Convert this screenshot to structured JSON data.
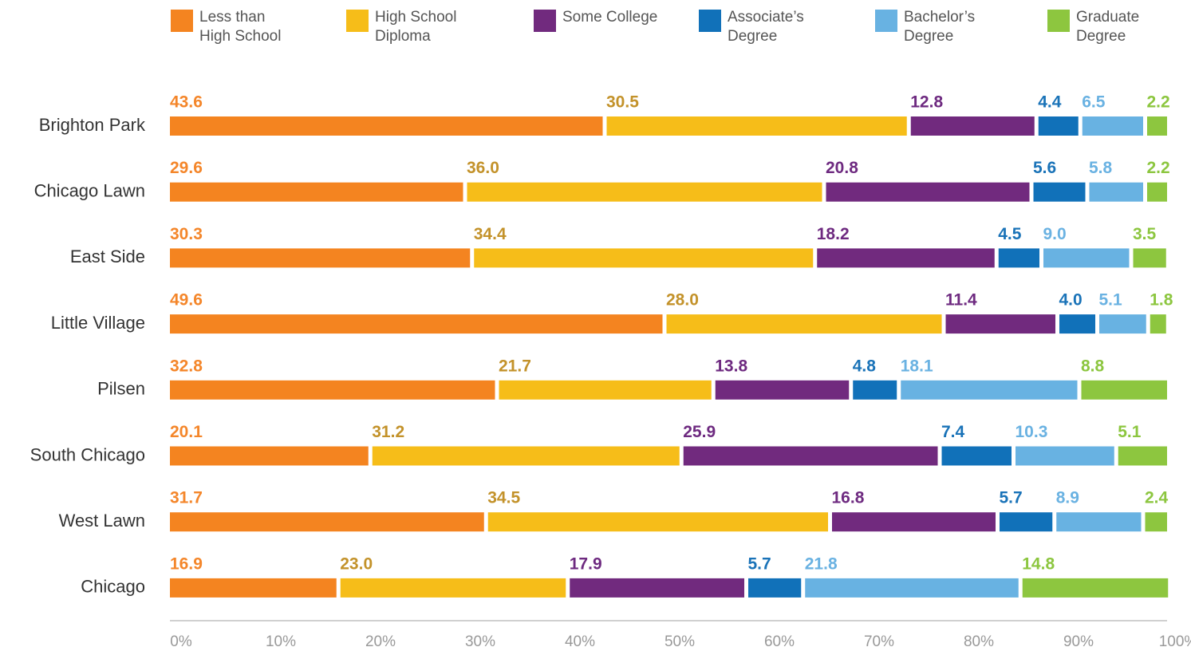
{
  "chart_data": {
    "type": "stacked-bar-horizontal",
    "categories": [
      "Brighton Park",
      "Chicago Lawn",
      "East Side",
      "Little Village",
      "Pilsen",
      "South Chicago",
      "West Lawn",
      "Chicago"
    ],
    "series": [
      {
        "name": "Less than High School",
        "color": "#f48420",
        "label_color": "#f4862a",
        "values": [
          43.6,
          29.6,
          30.3,
          49.6,
          32.8,
          20.1,
          31.7,
          16.9
        ],
        "value_labels": [
          "43.6",
          "29.6",
          "30.3",
          "49.6",
          "32.8",
          "20.1",
          "31.7",
          "16.9"
        ]
      },
      {
        "name": "High School Diploma",
        "color": "#f6bd19",
        "label_color": "#c3922a",
        "values": [
          30.5,
          36,
          34.4,
          28,
          21.7,
          31.2,
          34.5,
          23
        ],
        "value_labels": [
          "30.5",
          "36.0",
          "34.4",
          "28.0",
          "21.7",
          "31.2",
          "34.5",
          "23.0"
        ]
      },
      {
        "name": "Some College",
        "color": "#712a7e",
        "label_color": "#6e2a80",
        "values": [
          12.8,
          20.8,
          18.2,
          11.4,
          13.8,
          25.9,
          16.8,
          17.9
        ],
        "value_labels": [
          "12.8",
          "20.8",
          "18.2",
          "11.4",
          "13.8",
          "25.9",
          "16.8",
          "17.9"
        ]
      },
      {
        "name": "Associate’s Degree",
        "color": "#1171b9",
        "label_color": "#1a73b8",
        "values": [
          4.4,
          5.6,
          4.5,
          4,
          4.8,
          7.4,
          5.7,
          5.7
        ],
        "value_labels": [
          "4.4",
          "5.6",
          "4.5",
          "4.0",
          "4.8",
          "7.4",
          "5.7",
          "5.7"
        ]
      },
      {
        "name": "Bachelor’s Degree",
        "color": "#68b2e2",
        "label_color": "#6ab2e2",
        "values": [
          6.5,
          5.8,
          9,
          5.1,
          18.1,
          10.3,
          8.9,
          21.8
        ],
        "value_labels": [
          "6.5",
          "5.8",
          "9.0",
          "5.1",
          "18.1",
          "10.3",
          "8.9",
          "21.8"
        ]
      },
      {
        "name": "Graduate Degree",
        "color": "#8dc63f",
        "label_color": "#8cc63f",
        "values": [
          2.2,
          2.2,
          3.5,
          1.8,
          8.8,
          5.1,
          2.4,
          14.8
        ],
        "value_labels": [
          "2.2",
          "2.2",
          "3.5",
          "1.8",
          "8.8",
          "5.1",
          "2.4",
          "14.8"
        ]
      }
    ],
    "xlim": [
      0,
      100
    ],
    "xticks": [
      {
        "value": 0,
        "label": "0%"
      },
      {
        "value": 10,
        "label": "10%"
      },
      {
        "value": 20,
        "label": "20%"
      },
      {
        "value": 30,
        "label": "30%"
      },
      {
        "value": 40,
        "label": "40%"
      },
      {
        "value": 50,
        "label": "50%"
      },
      {
        "value": 60,
        "label": "60%"
      },
      {
        "value": 70,
        "label": "70%"
      },
      {
        "value": 80,
        "label": "80%"
      },
      {
        "value": 90,
        "label": "90%"
      },
      {
        "value": 100,
        "label": "100%"
      }
    ]
  }
}
